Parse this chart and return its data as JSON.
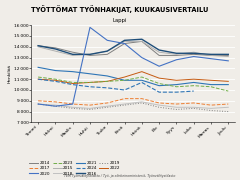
{
  "title": "TYÖTTÖMAT TYÖNHAKIJAT, KUUKAUSIVERTAILU",
  "subtitle": "Lappi",
  "ylabel": "Henkilöä",
  "source": "TEM Työnvälitystilasto / Työ- ja elinkeinoministeriö, Työnvälitystilasto",
  "months": [
    "Tammi",
    "Helmi",
    "Maalis",
    "Huhti",
    "Touko",
    "Kesä",
    "Heinä",
    "Elo",
    "Syys",
    "Loka",
    "Marras",
    "Joulu"
  ],
  "ylim": [
    7000,
    16000
  ],
  "yticks": [
    7000,
    8000,
    9000,
    10000,
    11000,
    12000,
    13000,
    14000,
    15000,
    16000
  ],
  "series": {
    "2014": {
      "color": "#808080",
      "style": "-",
      "lw": 0.7,
      "data": [
        14100,
        13900,
        13500,
        13200,
        13300,
        14300,
        14500,
        13200,
        13200,
        13300,
        13200,
        13200
      ]
    },
    "2015": {
      "color": "#b0b0b0",
      "style": "-",
      "lw": 0.7,
      "data": [
        14000,
        13600,
        13200,
        13300,
        13600,
        14500,
        14500,
        13500,
        13300,
        13500,
        13200,
        13100
      ]
    },
    "2016": {
      "color": "#1f4e79",
      "style": "-",
      "lw": 1.0,
      "data": [
        14100,
        13800,
        13300,
        13300,
        13600,
        14600,
        14700,
        13700,
        13400,
        13400,
        13300,
        13300
      ]
    },
    "2017": {
      "color": "#ed7d31",
      "style": "--",
      "lw": 0.7,
      "data": [
        9000,
        8900,
        8700,
        8600,
        8800,
        9200,
        9200,
        8800,
        8700,
        8800,
        8600,
        8700
      ]
    },
    "2018": {
      "color": "#c0c0c0",
      "style": "-",
      "lw": 0.7,
      "data": [
        8700,
        8600,
        8400,
        8300,
        8500,
        8700,
        8900,
        8600,
        8400,
        8400,
        8300,
        8400
      ]
    },
    "2019": {
      "color": "#7f7f7f",
      "style": ":",
      "lw": 0.7,
      "data": [
        8700,
        8500,
        8300,
        8200,
        8400,
        8600,
        8800,
        8400,
        8200,
        8300,
        8100,
        8000
      ]
    },
    "2020": {
      "color": "#4472c4",
      "style": "-",
      "lw": 0.8,
      "data": [
        8700,
        8500,
        8700,
        15800,
        14600,
        14300,
        13000,
        12200,
        12800,
        13100,
        12900,
        12700
      ]
    },
    "2021": {
      "color": "#2e75b6",
      "style": "-",
      "lw": 0.8,
      "data": [
        12100,
        11800,
        11700,
        11500,
        11300,
        10900,
        10900,
        10400,
        10500,
        10700,
        10500,
        10500
      ]
    },
    "2022": {
      "color": "#c55a11",
      "style": "-",
      "lw": 0.7,
      "data": [
        11000,
        10900,
        10600,
        10700,
        10800,
        11200,
        11700,
        11100,
        10900,
        11000,
        10900,
        10800
      ]
    },
    "2023": {
      "color": "#70ad47",
      "style": "--",
      "lw": 0.7,
      "data": [
        11200,
        11000,
        10700,
        10700,
        10800,
        10900,
        11200,
        10600,
        10300,
        10400,
        10300,
        9900
      ]
    },
    "2024": {
      "color": "#2e75b6",
      "style": "--",
      "lw": 0.8,
      "data": [
        11000,
        10800,
        10500,
        10300,
        10200,
        10000,
        10700,
        9800,
        9800,
        9900,
        null,
        null
      ]
    }
  }
}
